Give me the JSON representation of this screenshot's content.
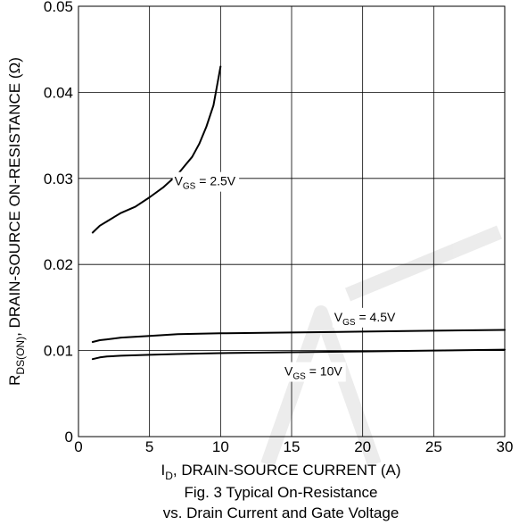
{
  "chart_data": {
    "type": "line",
    "xlabel_main": "I",
    "xlabel_sub": "D",
    "xlabel_rest": ", DRAIN-SOURCE CURRENT (A)",
    "ylabel_main": "R",
    "ylabel_sub": "DS(ON)",
    "ylabel_rest": ", DRAIN-SOURCE ON-RESISTANCE (Ω)",
    "caption_line1": "Fig. 3  Typical On-Resistance",
    "caption_line2": "vs. Drain Current and Gate Voltage",
    "xlim": [
      0,
      30
    ],
    "ylim": [
      0,
      0.05
    ],
    "xticks": [
      0,
      5,
      10,
      15,
      20,
      25,
      30
    ],
    "xtick_labels": [
      "0",
      "5",
      "10",
      "15",
      "20",
      "25",
      "30"
    ],
    "yticks": [
      0,
      0.01,
      0.02,
      0.03,
      0.04,
      0.05
    ],
    "ytick_labels": [
      "0",
      "0.01",
      "0.02",
      "0.03",
      "0.04",
      "0.05"
    ],
    "grid": true,
    "watermark_text": "OBSOLETE",
    "series": [
      {
        "name_main": "V",
        "name_sub": "GS",
        "name_rest": " = 2.5V",
        "x": [
          1,
          1.5,
          2,
          2.5,
          3,
          4,
          5,
          6,
          7,
          7.5,
          8,
          8.5,
          9,
          9.5,
          10
        ],
        "y": [
          0.0237,
          0.0245,
          0.025,
          0.0255,
          0.026,
          0.0267,
          0.0278,
          0.029,
          0.0305,
          0.0315,
          0.0325,
          0.034,
          0.036,
          0.0385,
          0.043
        ]
      },
      {
        "name_main": "V",
        "name_sub": "GS",
        "name_rest": " = 4.5V",
        "x": [
          1,
          1.5,
          2,
          3,
          5,
          7,
          10,
          15,
          20,
          25,
          30
        ],
        "y": [
          0.011,
          0.0112,
          0.0113,
          0.0115,
          0.0117,
          0.0119,
          0.012,
          0.0121,
          0.0122,
          0.0123,
          0.0124
        ]
      },
      {
        "name_main": "V",
        "name_sub": "GS",
        "name_rest": " = 10V",
        "x": [
          1,
          1.5,
          2,
          3,
          5,
          7,
          10,
          15,
          20,
          25,
          30
        ],
        "y": [
          0.009,
          0.0092,
          0.0093,
          0.0094,
          0.0095,
          0.0096,
          0.0097,
          0.0098,
          0.0099,
          0.01,
          0.0101
        ]
      }
    ]
  }
}
